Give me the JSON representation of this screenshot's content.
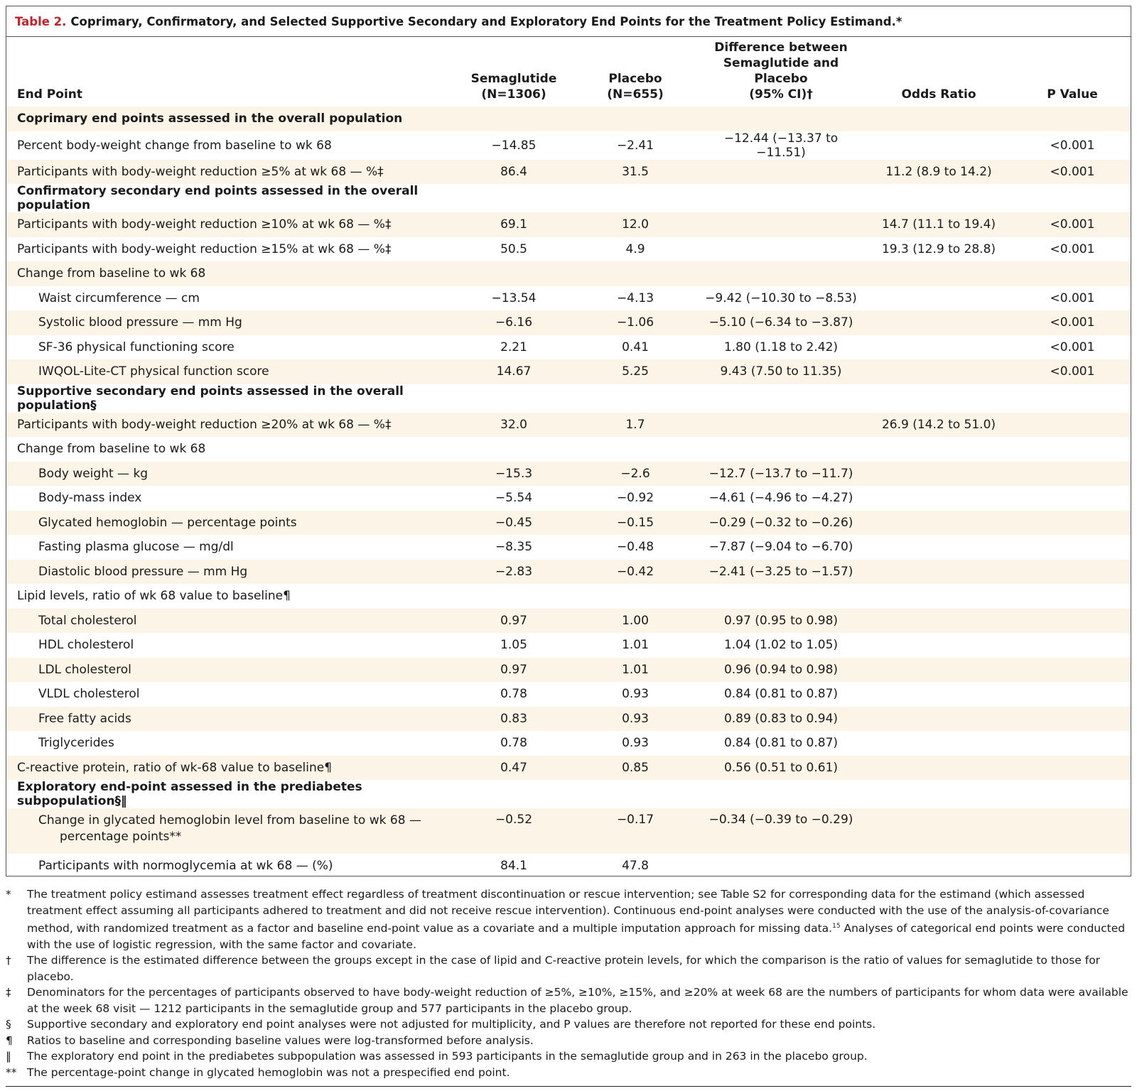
{
  "title": {
    "label": "Table 2.",
    "text": "Coprimary, Confirmatory, and Selected Supportive Secondary and Exploratory End Points for the Treatment Policy Estimand.*"
  },
  "columns": {
    "endpoint": "End Point",
    "sema_line1": "Semaglutide",
    "sema_line2": "(N=1306)",
    "plac_line1": "Placebo",
    "plac_line2": "(N=655)",
    "diff_line1": "Difference between",
    "diff_line2": "Semaglutide and Placebo",
    "diff_line3": "(95% CI)†",
    "or": "Odds Ratio",
    "p": "P Value"
  },
  "rows": [
    {
      "label": "Coprimary end points assessed in the overall population",
      "sema": "",
      "plac": "",
      "diff": "",
      "or": "",
      "p": ""
    },
    {
      "label": "Percent body-weight change from baseline to wk 68",
      "sema": "−14.85",
      "plac": "−2.41",
      "diff": "−12.44 (−13.37 to −11.51)",
      "or": "",
      "p": "<0.001"
    },
    {
      "label": "Participants with body-weight reduction ≥5% at wk 68 — %‡",
      "sema": "86.4",
      "plac": "31.5",
      "diff": "",
      "or": "11.2 (8.9 to 14.2)",
      "p": "<0.001"
    },
    {
      "label": "Confirmatory secondary end points assessed in the overall population",
      "sema": "",
      "plac": "",
      "diff": "",
      "or": "",
      "p": ""
    },
    {
      "label": "Participants with body-weight reduction ≥10% at wk 68 — %‡",
      "sema": "69.1",
      "plac": "12.0",
      "diff": "",
      "or": "14.7 (11.1 to 19.4)",
      "p": "<0.001"
    },
    {
      "label": "Participants with body-weight reduction ≥15% at wk 68 — %‡",
      "sema": "50.5",
      "plac": "4.9",
      "diff": "",
      "or": "19.3 (12.9 to 28.8)",
      "p": "<0.001"
    },
    {
      "label": "Change from baseline to wk 68",
      "sema": "",
      "plac": "",
      "diff": "",
      "or": "",
      "p": ""
    },
    {
      "label": "Waist circumference — cm",
      "sema": "−13.54",
      "plac": "−4.13",
      "diff": "−9.42 (−10.30 to −8.53)",
      "or": "",
      "p": "<0.001"
    },
    {
      "label": "Systolic blood pressure — mm Hg",
      "sema": "−6.16",
      "plac": "−1.06",
      "diff": "−5.10 (−6.34 to −3.87)",
      "or": "",
      "p": "<0.001"
    },
    {
      "label": "SF-36 physical functioning score",
      "sema": "2.21",
      "plac": "0.41",
      "diff": "1.80 (1.18 to 2.42)",
      "or": "",
      "p": "<0.001"
    },
    {
      "label": "IWQOL-Lite-CT physical function score",
      "sema": "14.67",
      "plac": "5.25",
      "diff": "9.43 (7.50 to 11.35)",
      "or": "",
      "p": "<0.001"
    },
    {
      "label": "Supportive secondary end points assessed in the overall population§",
      "sema": "",
      "plac": "",
      "diff": "",
      "or": "",
      "p": ""
    },
    {
      "label": "Participants with body-weight reduction ≥20% at wk 68 — %‡",
      "sema": "32.0",
      "plac": "1.7",
      "diff": "",
      "or": "26.9 (14.2 to 51.0)",
      "p": ""
    },
    {
      "label": "Change from baseline to wk 68",
      "sema": "",
      "plac": "",
      "diff": "",
      "or": "",
      "p": ""
    },
    {
      "label": "Body weight — kg",
      "sema": "−15.3",
      "plac": "−2.6",
      "diff": "−12.7 (−13.7 to −11.7)",
      "or": "",
      "p": ""
    },
    {
      "label": "Body-mass index",
      "sema": "−5.54",
      "plac": "−0.92",
      "diff": "−4.61 (−4.96 to −4.27)",
      "or": "",
      "p": ""
    },
    {
      "label": "Glycated hemoglobin — percentage points",
      "sema": "−0.45",
      "plac": "−0.15",
      "diff": "−0.29 (−0.32 to −0.26)",
      "or": "",
      "p": ""
    },
    {
      "label": "Fasting plasma glucose — mg/dl",
      "sema": "−8.35",
      "plac": "−0.48",
      "diff": "−7.87 (−9.04 to −6.70)",
      "or": "",
      "p": ""
    },
    {
      "label": "Diastolic blood pressure — mm Hg",
      "sema": "−2.83",
      "plac": "−0.42",
      "diff": "−2.41 (−3.25 to −1.57)",
      "or": "",
      "p": ""
    },
    {
      "label": "Lipid levels, ratio of wk 68 value to baseline¶",
      "sema": "",
      "plac": "",
      "diff": "",
      "or": "",
      "p": ""
    },
    {
      "label": "Total cholesterol",
      "sema": "0.97",
      "plac": "1.00",
      "diff": "0.97 (0.95 to 0.98)",
      "or": "",
      "p": ""
    },
    {
      "label": "HDL cholesterol",
      "sema": "1.05",
      "plac": "1.01",
      "diff": "1.04 (1.02 to 1.05)",
      "or": "",
      "p": ""
    },
    {
      "label": "LDL cholesterol",
      "sema": "0.97",
      "plac": "1.01",
      "diff": "0.96 (0.94 to 0.98)",
      "or": "",
      "p": ""
    },
    {
      "label": "VLDL cholesterol",
      "sema": "0.78",
      "plac": "0.93",
      "diff": "0.84 (0.81 to 0.87)",
      "or": "",
      "p": ""
    },
    {
      "label": "Free fatty acids",
      "sema": "0.83",
      "plac": "0.93",
      "diff": "0.89 (0.83 to 0.94)",
      "or": "",
      "p": ""
    },
    {
      "label": "Triglycerides",
      "sema": "0.78",
      "plac": "0.93",
      "diff": "0.84 (0.81 to 0.87)",
      "or": "",
      "p": ""
    },
    {
      "label": "C-reactive protein, ratio of wk-68 value to baseline¶",
      "sema": "0.47",
      "plac": "0.85",
      "diff": "0.56 (0.51 to 0.61)",
      "or": "",
      "p": ""
    },
    {
      "label": "Exploratory end-point assessed in the prediabetes subpopulation§‖",
      "sema": "",
      "plac": "",
      "diff": "",
      "or": "",
      "p": ""
    },
    {
      "label": "Change in glycated hemoglobin level from baseline to wk 68 — percentage points**",
      "sema": "−0.52",
      "plac": "−0.17",
      "diff": "−0.34 (−0.39 to −0.29)",
      "or": "",
      "p": ""
    },
    {
      "label": "Participants with normoglycemia at wk 68 — (%)",
      "sema": "84.1",
      "plac": "47.8",
      "diff": "",
      "or": "",
      "p": ""
    }
  ],
  "footnotes": [
    {
      "sym": "*",
      "text": "The treatment policy estimand assesses treatment effect regardless of treatment discontinuation or rescue intervention; see Table S2 for corresponding data for the estimand (which assessed treatment effect assuming all participants adhered to treatment and did not receive rescue intervention). Continuous end-point analyses were conducted with the use of the analysis-of-covariance method, with randomized treatment as a factor and baseline end-point value as a covariate and a multiple imputation approach for missing data.",
      "sup": "15",
      "text2": " Analyses of categorical end points were conducted with the use of logistic regression, with the same factor and covariate."
    },
    {
      "sym": "†",
      "text": "The difference is the estimated difference between the groups except in the case of lipid and C-reactive protein levels, for which the comparison is the ratio of values for semaglutide to those for placebo."
    },
    {
      "sym": "‡",
      "text": "Denominators for the percentages of participants observed to have body-weight reduction of ≥5%, ≥10%, ≥15%, and ≥20% at week 68 are the numbers of participants for whom data were available at the week 68 visit — 1212 participants in the semaglutide group and 577 participants in the placebo group."
    },
    {
      "sym": "§",
      "text": "Supportive secondary and exploratory end point analyses were not adjusted for multiplicity, and P values are therefore not reported for these end points."
    },
    {
      "sym": "¶",
      "text": "Ratios to baseline and corresponding baseline values were log-transformed before analysis."
    },
    {
      "sym": "‖",
      "text": "The exploratory end point in the prediabetes subpopulation was assessed in 593 participants in the semaglutide group and in 263 in the placebo group."
    },
    {
      "sym": "**",
      "text": "The percentage-point change in glycated hemoglobin was not a prespecified end point."
    }
  ]
}
